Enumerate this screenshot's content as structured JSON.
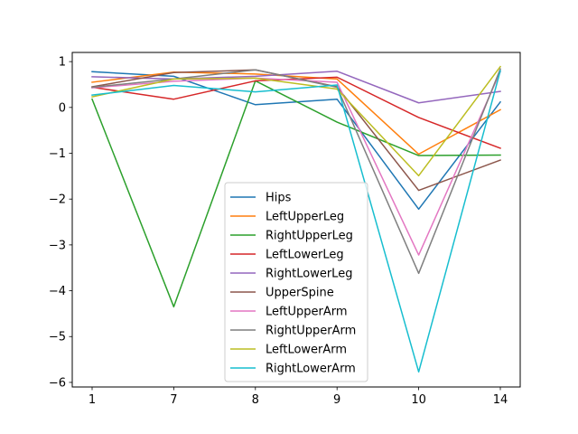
{
  "chart_data": {
    "type": "line",
    "title": "",
    "xlabel": "",
    "ylabel": "",
    "categories": [
      "1",
      "7",
      "8",
      "9",
      "10",
      "14"
    ],
    "yticks": [
      "1",
      "0",
      "−1",
      "−2",
      "−3",
      "−4",
      "−5",
      "−6"
    ],
    "ylim": [
      -6.1,
      1.2
    ],
    "grid": false,
    "legend_position": "lower-center",
    "series": [
      {
        "name": "Hips",
        "color": "#1f77b4",
        "values": [
          0.78,
          0.68,
          0.06,
          0.18,
          -2.22,
          0.12
        ]
      },
      {
        "name": "LeftUpperLeg",
        "color": "#ff7f0e",
        "values": [
          0.55,
          0.77,
          0.73,
          0.62,
          -1.02,
          -0.05
        ]
      },
      {
        "name": "RightUpperLeg",
        "color": "#2ca02c",
        "values": [
          0.18,
          -4.35,
          0.58,
          -0.32,
          -1.05,
          -1.04
        ]
      },
      {
        "name": "LeftLowerLeg",
        "color": "#d62728",
        "values": [
          0.44,
          0.18,
          0.58,
          0.66,
          -0.22,
          -0.89
        ]
      },
      {
        "name": "RightLowerLeg",
        "color": "#9467bd",
        "values": [
          0.67,
          0.62,
          0.68,
          0.79,
          0.1,
          0.35
        ]
      },
      {
        "name": "UpperSpine",
        "color": "#8c564b",
        "values": [
          0.45,
          0.76,
          0.82,
          0.45,
          -1.81,
          -1.15
        ]
      },
      {
        "name": "LeftUpperArm",
        "color": "#e377c2",
        "values": [
          0.43,
          0.57,
          0.64,
          0.55,
          -3.22,
          0.78
        ]
      },
      {
        "name": "RightUpperArm",
        "color": "#7f7f7f",
        "values": [
          0.44,
          0.62,
          0.82,
          0.44,
          -3.62,
          0.84
        ]
      },
      {
        "name": "LeftLowerArm",
        "color": "#bcbd22",
        "values": [
          0.23,
          0.62,
          0.64,
          0.4,
          -1.49,
          0.89
        ]
      },
      {
        "name": "RightLowerArm",
        "color": "#17becf",
        "values": [
          0.27,
          0.48,
          0.34,
          0.49,
          -5.77,
          0.8
        ]
      }
    ]
  }
}
